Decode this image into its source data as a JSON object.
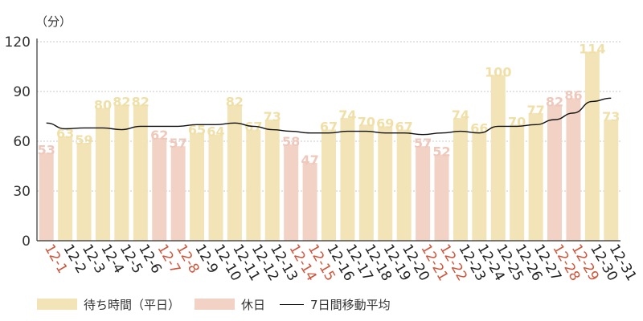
{
  "chart_data": {
    "type": "bar",
    "unit_label": "（分）",
    "ylim": [
      0,
      120
    ],
    "yticks": [
      0,
      30,
      60,
      90,
      120
    ],
    "categories": [
      "12-1",
      "12-2",
      "12-3",
      "12-4",
      "12-5",
      "12-6",
      "12-7",
      "12-8",
      "12-9",
      "12-10",
      "12-11",
      "12-12",
      "12-13",
      "12-14",
      "12-15",
      "12-16",
      "12-17",
      "12-18",
      "12-19",
      "12-20",
      "12-21",
      "12-22",
      "12-23",
      "12-24",
      "12-25",
      "12-26",
      "12-27",
      "12-28",
      "12-29",
      "12-30",
      "12-31"
    ],
    "values": [
      53,
      63,
      59,
      80,
      82,
      82,
      62,
      57,
      65,
      64,
      82,
      67,
      73,
      58,
      47,
      67,
      74,
      70,
      69,
      67,
      57,
      52,
      74,
      66,
      100,
      70,
      77,
      82,
      86,
      114,
      73
    ],
    "day_type": [
      "holiday",
      "weekday",
      "weekday",
      "weekday",
      "weekday",
      "weekday",
      "holiday",
      "holiday",
      "weekday",
      "weekday",
      "weekday",
      "weekday",
      "weekday",
      "holiday",
      "holiday",
      "weekday",
      "weekday",
      "weekday",
      "weekday",
      "weekday",
      "holiday",
      "holiday",
      "weekday",
      "weekday",
      "weekday",
      "weekday",
      "weekday",
      "holiday",
      "holiday",
      "weekday",
      "weekday"
    ],
    "moving_average": [
      71,
      67.5,
      68,
      68,
      67,
      69,
      69,
      69,
      70,
      70,
      71,
      69,
      67,
      66,
      65,
      65,
      66,
      66,
      65,
      65,
      64,
      65,
      66,
      65,
      69,
      69,
      70,
      73,
      77,
      84,
      86
    ],
    "series": [
      {
        "name": "待ち時間（平日）",
        "color": "#f2e4b6"
      },
      {
        "name": "休日",
        "color": "#f3d2c6"
      },
      {
        "name": "7日間移動平均",
        "color": "#111111"
      }
    ],
    "colors": {
      "bar_label_weekday": "#f0dfa6",
      "bar_label_holiday": "#efc8bb",
      "tick_weekday": "#222222",
      "tick_holiday": "#d0553a"
    }
  },
  "legend": {
    "weekday": "待ち時間（平日）",
    "holiday": "休日",
    "moving_average": "7日間移動平均"
  }
}
